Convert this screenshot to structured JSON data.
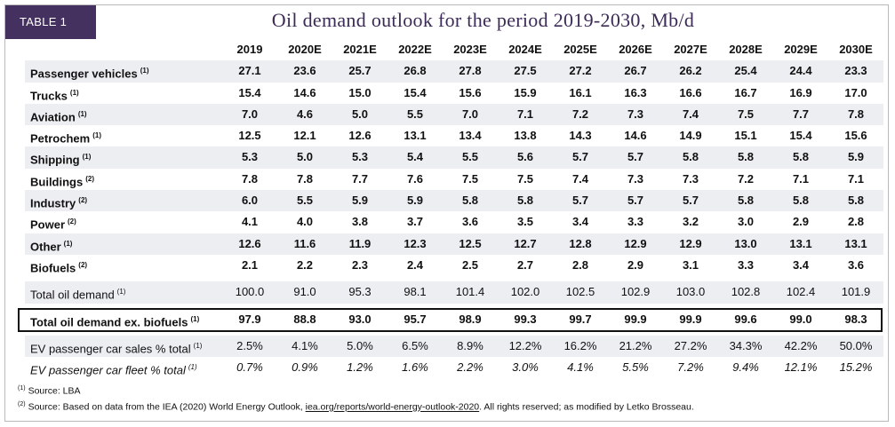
{
  "tag": "TABLE 1",
  "title": "Oil demand outlook for the period 2019-2030, Mb/d",
  "columns": [
    "2019",
    "2020E",
    "2021E",
    "2022E",
    "2023E",
    "2024E",
    "2025E",
    "2026E",
    "2027E",
    "2028E",
    "2029E",
    "2030E"
  ],
  "rows": [
    {
      "label": "Passenger vehicles",
      "sup": "(1)",
      "values": [
        "27.1",
        "23.6",
        "25.7",
        "26.8",
        "27.8",
        "27.5",
        "27.2",
        "26.7",
        "26.2",
        "25.4",
        "24.4",
        "23.3"
      ]
    },
    {
      "label": "Trucks",
      "sup": "(1)",
      "values": [
        "15.4",
        "14.6",
        "15.0",
        "15.4",
        "15.6",
        "15.9",
        "16.1",
        "16.3",
        "16.6",
        "16.7",
        "16.9",
        "17.0"
      ]
    },
    {
      "label": "Aviation",
      "sup": "(1)",
      "values": [
        "7.0",
        "4.6",
        "5.0",
        "5.5",
        "7.0",
        "7.1",
        "7.2",
        "7.3",
        "7.4",
        "7.5",
        "7.7",
        "7.8"
      ]
    },
    {
      "label": "Petrochem",
      "sup": "(1)",
      "values": [
        "12.5",
        "12.1",
        "12.6",
        "13.1",
        "13.4",
        "13.8",
        "14.3",
        "14.6",
        "14.9",
        "15.1",
        "15.4",
        "15.6"
      ]
    },
    {
      "label": "Shipping",
      "sup": "(1)",
      "values": [
        "5.3",
        "5.0",
        "5.3",
        "5.4",
        "5.5",
        "5.6",
        "5.7",
        "5.7",
        "5.8",
        "5.8",
        "5.8",
        "5.9"
      ]
    },
    {
      "label": "Buildings",
      "sup": "(2)",
      "values": [
        "7.8",
        "7.8",
        "7.7",
        "7.6",
        "7.5",
        "7.5",
        "7.4",
        "7.3",
        "7.3",
        "7.2",
        "7.1",
        "7.1"
      ]
    },
    {
      "label": "Industry",
      "sup": "(2)",
      "values": [
        "6.0",
        "5.5",
        "5.9",
        "5.9",
        "5.8",
        "5.8",
        "5.7",
        "5.7",
        "5.7",
        "5.8",
        "5.8",
        "5.8"
      ]
    },
    {
      "label": "Power",
      "sup": "(2)",
      "values": [
        "4.1",
        "4.0",
        "3.8",
        "3.7",
        "3.6",
        "3.5",
        "3.4",
        "3.3",
        "3.2",
        "3.0",
        "2.9",
        "2.8"
      ]
    },
    {
      "label": "Other",
      "sup": "(1)",
      "values": [
        "12.6",
        "11.6",
        "11.9",
        "12.3",
        "12.5",
        "12.7",
        "12.8",
        "12.9",
        "12.9",
        "13.0",
        "13.1",
        "13.1"
      ]
    },
    {
      "label": "Biofuels",
      "sup": "(2)",
      "values": [
        "2.1",
        "2.2",
        "2.3",
        "2.4",
        "2.5",
        "2.7",
        "2.8",
        "2.9",
        "3.1",
        "3.3",
        "3.4",
        "3.6"
      ]
    }
  ],
  "total": {
    "label": "Total oil demand",
    "sup": "(1)",
    "values": [
      "100.0",
      "91.0",
      "95.3",
      "98.1",
      "101.4",
      "102.0",
      "102.5",
      "102.9",
      "103.0",
      "102.8",
      "102.4",
      "101.9"
    ]
  },
  "total_ex": {
    "label": "Total oil demand ex. biofuels",
    "sup": "(1)",
    "values": [
      "97.9",
      "88.8",
      "93.0",
      "95.7",
      "98.9",
      "99.3",
      "99.7",
      "99.9",
      "99.9",
      "99.6",
      "99.0",
      "98.3"
    ]
  },
  "ev_sales": {
    "label": "EV passenger car sales % total",
    "sup": "(1)",
    "values": [
      "2.5%",
      "4.1%",
      "5.0%",
      "6.5%",
      "8.9%",
      "12.2%",
      "16.2%",
      "21.2%",
      "27.2%",
      "34.3%",
      "42.2%",
      "50.0%"
    ]
  },
  "ev_fleet": {
    "label": "EV passenger car fleet % total",
    "sup": "(1)",
    "values": [
      "0.7%",
      "0.9%",
      "1.2%",
      "1.6%",
      "2.2%",
      "3.0%",
      "4.1%",
      "5.5%",
      "7.2%",
      "9.4%",
      "12.1%",
      "15.2%"
    ]
  },
  "footnotes": {
    "f1_mark": "(1)",
    "f1_text": "Source: LBA",
    "f2_mark": "(2)",
    "f2_pre": "Source: Based on data from the IEA (2020) World Energy Outlook, ",
    "f2_link": "iea.org/reports/world-energy-outlook-2020",
    "f2_post": ". All rights reserved; as modified by Letko Brosseau."
  }
}
